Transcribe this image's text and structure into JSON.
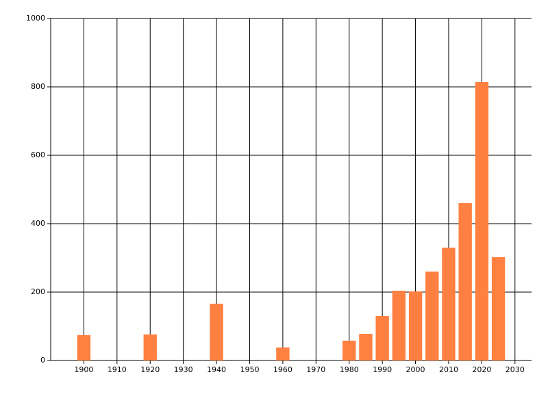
{
  "chart_data": {
    "type": "bar",
    "x": [
      1900,
      1920,
      1940,
      1960,
      1980,
      1985,
      1990,
      1995,
      2000,
      2005,
      2010,
      2015,
      2020,
      2025
    ],
    "values": [
      74,
      76,
      166,
      38,
      58,
      78,
      130,
      204,
      202,
      260,
      330,
      460,
      814,
      302
    ],
    "color": "#ff8040",
    "xlim": [
      1890,
      2035
    ],
    "ylim": [
      0,
      1000
    ],
    "xticks": [
      1900,
      1910,
      1920,
      1930,
      1940,
      1950,
      1960,
      1970,
      1980,
      1990,
      2000,
      2010,
      2020,
      2030
    ],
    "yticks": [
      0,
      200,
      400,
      600,
      800,
      1000
    ],
    "grid": true
  }
}
